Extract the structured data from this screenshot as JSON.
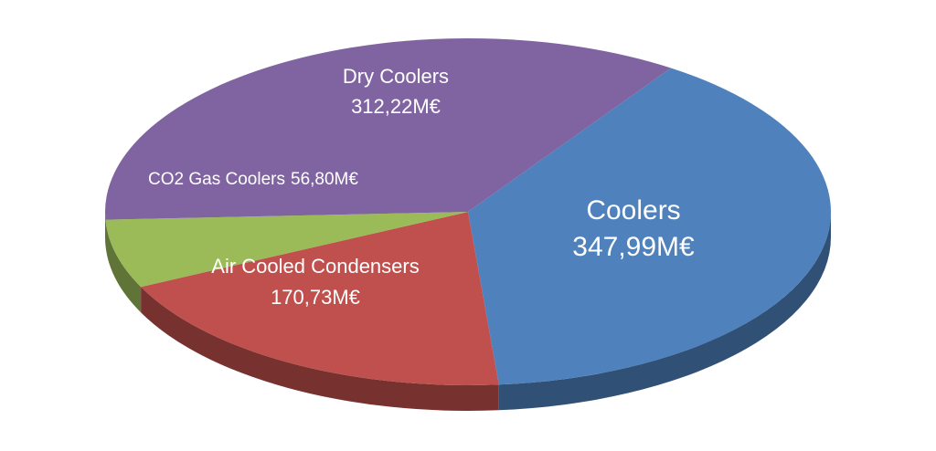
{
  "chart_data": {
    "type": "pie",
    "categories": [
      "Coolers",
      "Air Cooled Condensers",
      "CO2 Gas Coolers",
      "Dry Coolers"
    ],
    "values": [
      347.99,
      170.73,
      56.8,
      312.22
    ],
    "value_labels": [
      "347,99M€",
      "170,73M€",
      "56,80M€",
      "312,22M€"
    ],
    "colors": [
      "#4f81bd",
      "#c0504d",
      "#9bbb59",
      "#8064a2"
    ]
  }
}
